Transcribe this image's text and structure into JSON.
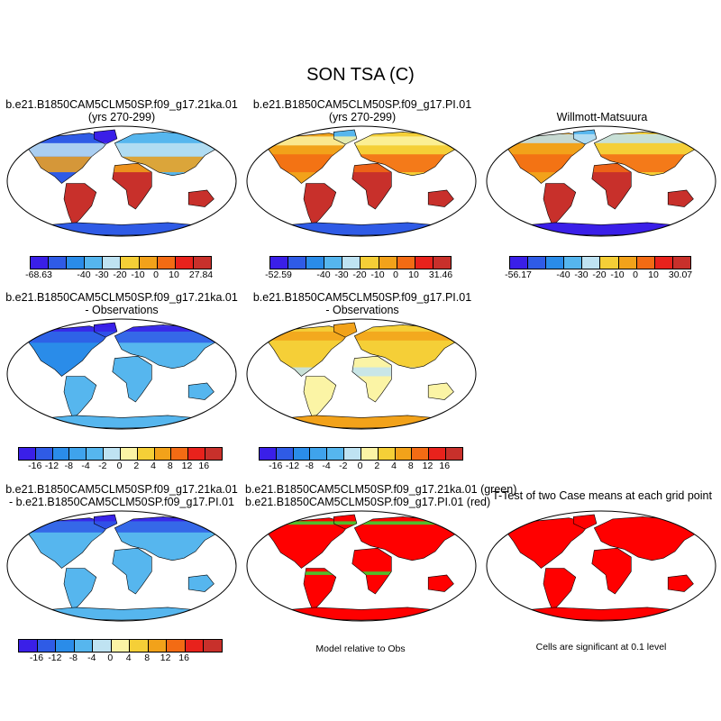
{
  "figure": {
    "title": "SON TSA (C)"
  },
  "panels": [
    {
      "id": "p1",
      "title1": "b.e21.B1850CAM5CLM50SP.f09_g17.21ka.01",
      "title2": "(yrs 270-299)",
      "palette": "cold"
    },
    {
      "id": "p2",
      "title1": "b.e21.B1850CAM5CLM50SP.f09_g17.PI.01",
      "title2": "(yrs 270-299)",
      "palette": "warm"
    },
    {
      "id": "p3",
      "title1": "Willmott-Matsuura",
      "title2": "",
      "palette": "warm2"
    },
    {
      "id": "p4",
      "title1": "b.e21.B1850CAM5CLM50SP.f09_g17.21ka.01",
      "title2": "- Observations",
      "palette": "diffcold"
    },
    {
      "id": "p5",
      "title1": "b.e21.B1850CAM5CLM50SP.f09_g17.PI.01",
      "title2": "- Observations",
      "palette": "diffwarm"
    },
    {
      "id": "p6",
      "title1": "b.e21.B1850CAM5CLM50SP.f09_g17.21ka.01",
      "title2": "- b.e21.B1850CAM5CLM50SP.f09_g17.PI.01",
      "palette": "diffcold2"
    },
    {
      "id": "p7",
      "title1": "b.e21.B1850CAM5CLM50SP.f09_g17.21ka.01 (green)",
      "title2": "b.e21.B1850CAM5CLM50SP.f09_g17.PI.01 (red)",
      "palette": "redgreen"
    },
    {
      "id": "p8",
      "title1": "T-Test of two Case means at each grid point",
      "title2": "",
      "palette": "red"
    }
  ],
  "colorbars": {
    "abs1": {
      "colors": [
        "#3a1fe8",
        "#2f5be6",
        "#2a8ce9",
        "#56b6ee",
        "#bfe3f2",
        "#f5cf37",
        "#f2a21a",
        "#f36b14",
        "#e8221c",
        "#c8302b"
      ],
      "labels": [
        "-68.63",
        "-40",
        "-30",
        "-20",
        "-10",
        "0",
        "10",
        "27.84"
      ]
    },
    "abs2": {
      "colors": [
        "#3a1fe8",
        "#2f5be6",
        "#2a8ce9",
        "#56b6ee",
        "#bfe3f2",
        "#f5cf37",
        "#f2a21a",
        "#f36b14",
        "#e8221c",
        "#c8302b"
      ],
      "labels": [
        "-52.59",
        "-40",
        "-30",
        "-20",
        "-10",
        "0",
        "10",
        "31.46"
      ]
    },
    "abs3": {
      "colors": [
        "#3a1fe8",
        "#2f5be6",
        "#2a8ce9",
        "#56b6ee",
        "#bfe3f2",
        "#f5cf37",
        "#f2a21a",
        "#f36b14",
        "#e8221c",
        "#c8302b"
      ],
      "labels": [
        "-56.17",
        "-40",
        "-30",
        "-20",
        "-10",
        "0",
        "10",
        "30.07"
      ]
    },
    "diff1": {
      "colors": [
        "#3a1fe8",
        "#2f5be6",
        "#2a8ce9",
        "#3fa3ec",
        "#56b6ee",
        "#bfe3f2",
        "#fbf4a5",
        "#f5cf37",
        "#f2a21a",
        "#f36b14",
        "#e8221c",
        "#c8302b"
      ],
      "labels": [
        "-16",
        "-12",
        "-8",
        "-4",
        "-2",
        "0",
        "2",
        "4",
        "8",
        "12",
        "16"
      ]
    },
    "diff2": {
      "colors": [
        "#3a1fe8",
        "#2f5be6",
        "#2a8ce9",
        "#3fa3ec",
        "#56b6ee",
        "#bfe3f2",
        "#fbf4a5",
        "#f5cf37",
        "#f2a21a",
        "#f36b14",
        "#e8221c",
        "#c8302b"
      ],
      "labels": [
        "-16",
        "-12",
        "-8",
        "-4",
        "-2",
        "0",
        "2",
        "4",
        "8",
        "12",
        "16"
      ]
    },
    "diff3": {
      "colors": [
        "#3a1fe8",
        "#2f5be6",
        "#2a8ce9",
        "#56b6ee",
        "#bfe3f2",
        "#fbf4a5",
        "#f5cf37",
        "#f2a21a",
        "#f36b14",
        "#e8221c",
        "#c8302b"
      ],
      "labels": [
        "-16",
        "-12",
        "-8",
        "-4",
        "0",
        "4",
        "8",
        "12",
        "16"
      ]
    }
  },
  "notes": {
    "model_rel_obs": "Model relative to Obs",
    "significance": "Cells are significant at 0.1 level"
  }
}
